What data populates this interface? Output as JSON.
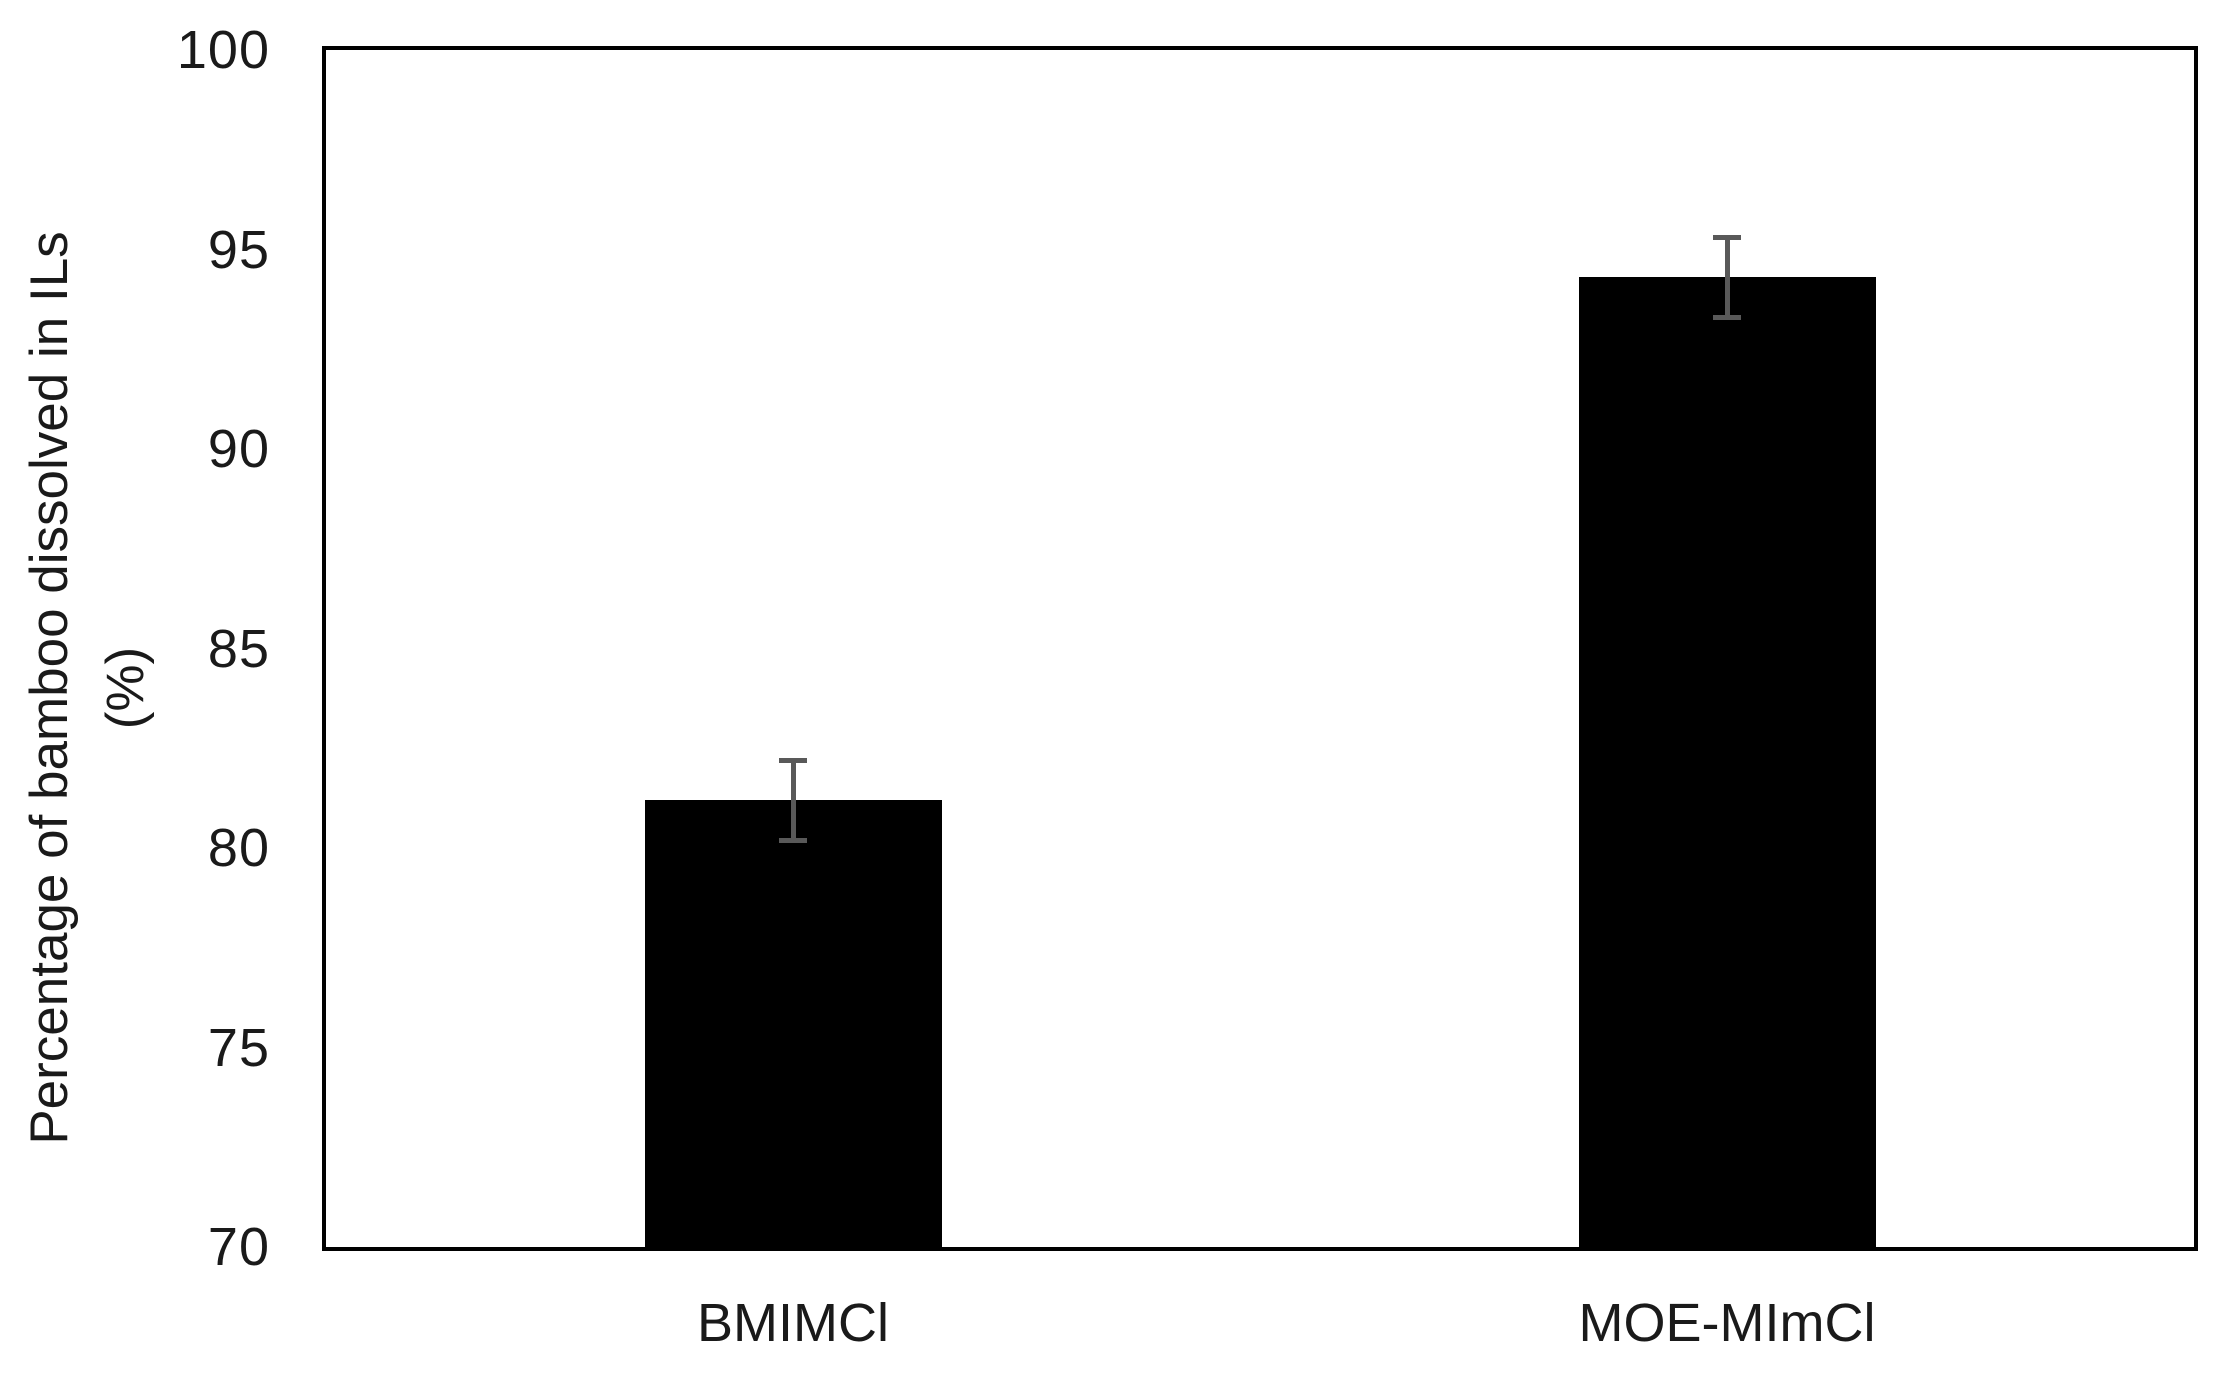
{
  "chart_data": {
    "type": "bar",
    "categories": [
      "BMIMCl",
      "MOE-MImCl"
    ],
    "values": [
      81.2,
      94.3
    ],
    "error_bars": [
      1.0,
      1.0
    ],
    "title": "",
    "xlabel": "",
    "ylabel": "Percentage of bamboo dissolved in ILs (%)",
    "ylabel_lines": [
      "Percentage of bamboo dissolved in ILs",
      "(%)"
    ],
    "ylim": [
      70,
      100
    ],
    "yticks": [
      100,
      95,
      90,
      85,
      80,
      75,
      70
    ],
    "grid": false,
    "legend": false,
    "bar_color": "#000000",
    "error_bar_color": "#595959",
    "axis_frame_color": "#000000",
    "background_color": "#ffffff"
  }
}
